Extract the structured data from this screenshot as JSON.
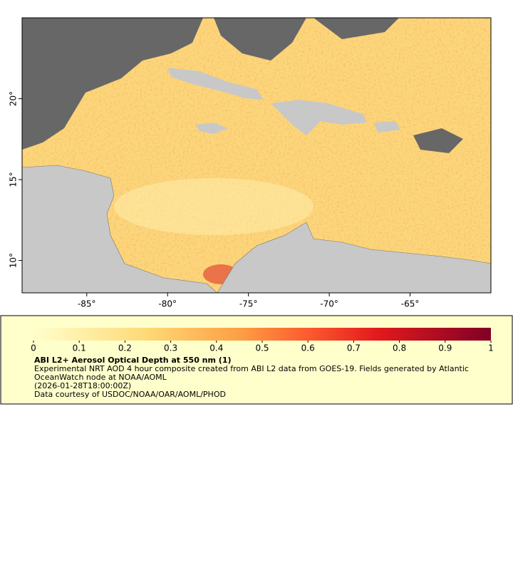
{
  "map": {
    "xlim": [
      -89,
      -60
    ],
    "ylim": [
      8,
      25
    ],
    "xticks": [
      {
        "value": -85,
        "label": "-85°"
      },
      {
        "value": -80,
        "label": "-80°"
      },
      {
        "value": -75,
        "label": "-75°"
      },
      {
        "value": -70,
        "label": "-70°"
      },
      {
        "value": -65,
        "label": "-65°"
      }
    ],
    "yticks": [
      {
        "value": 10,
        "label": "10°"
      },
      {
        "value": 15,
        "label": "15°"
      },
      {
        "value": 20,
        "label": "20°"
      }
    ]
  },
  "colorbar": {
    "range": [
      0,
      1
    ],
    "ticks": [
      0,
      0.1,
      0.2,
      0.3,
      0.4,
      0.5,
      0.6,
      0.7,
      0.8,
      0.9,
      1
    ]
  },
  "legend": {
    "title": "ABI L2+ Aerosol Optical Depth at 550 nm (1)",
    "description": "Experimental NRT AOD 4 hour composite created from ABI L2 data from GOES-19. Fields generated by Atlantic OceanWatch node at NOAA/AOML",
    "time": "(2026-01-28T18:00:00Z)",
    "credit": "Data courtesy of USDOC/NOAA/OAR/AOML/PHOD"
  }
}
